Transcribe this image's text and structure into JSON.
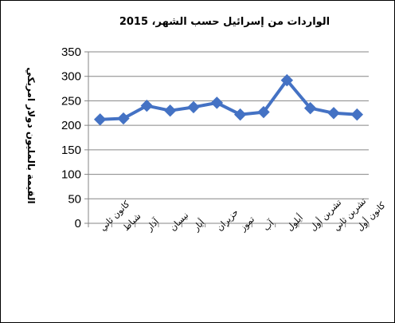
{
  "chart_data": {
    "type": "line",
    "title": "الواردات من إسرائيل حسب الشهر، 2015",
    "xlabel": "",
    "ylabel": "القيمة بالمليون دولار امريكي",
    "categories": [
      "كانون ثاني",
      "شباط",
      "آذار",
      "نيسان",
      "أيار",
      "حزيران",
      "تموز",
      "آب",
      "أيلول",
      "تشرين أول",
      "تشرين ثاني",
      "كانون أول"
    ],
    "values": [
      212,
      214,
      240,
      230,
      237,
      246,
      222,
      227,
      292,
      235,
      225,
      222
    ],
    "ylim": [
      0,
      350
    ],
    "yticks": [
      0,
      50,
      100,
      150,
      200,
      250,
      300,
      350
    ],
    "grid": true,
    "legend": "none",
    "colors": {
      "line": "#4472C4",
      "marker": "#4472C4",
      "grid": "#868686",
      "axis": "#868686"
    }
  }
}
